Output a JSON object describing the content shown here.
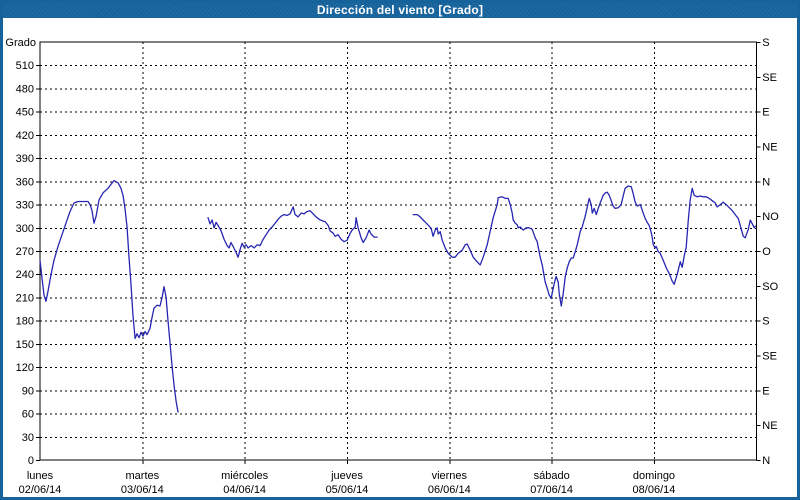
{
  "window": {
    "title": "Dirección del viento [Grado]"
  },
  "colors": {
    "frame": "#16639c",
    "title_bar": "#16639c",
    "title_text": "#ffffff",
    "plot_background": "#ffffff",
    "grid": "#000000",
    "axis": "#000000",
    "line": "#2626b2"
  },
  "chart_data": {
    "type": "line",
    "title": "Dirección del viento [Grado]",
    "grid": {
      "style": "dashed",
      "horizontal_step_degrees": 30,
      "vertical": "day boundaries"
    },
    "legend": "none",
    "y_axis_left": {
      "label": "Grado",
      "range": [
        0,
        540
      ],
      "tick_step": 30,
      "tick_labels": [
        "0",
        "30",
        "60",
        "90",
        "120",
        "150",
        "180",
        "210",
        "240",
        "270",
        "300",
        "330",
        "360",
        "390",
        "420",
        "450",
        "480",
        "510"
      ]
    },
    "y_axis_right": {
      "tick_step_degrees": 45,
      "labels_bottom_to_top": [
        "N",
        "NE",
        "E",
        "SE",
        "S",
        "SO",
        "O",
        "NO",
        "N",
        "NE",
        "E",
        "SE",
        "S"
      ]
    },
    "x_axis": {
      "unit": "days",
      "range_days": [
        0,
        7
      ],
      "days": [
        {
          "name": "lunes",
          "date": "02/06/14"
        },
        {
          "name": "martes",
          "date": "03/06/14"
        },
        {
          "name": "miércoles",
          "date": "04/06/14"
        },
        {
          "name": "jueves",
          "date": "05/06/14"
        },
        {
          "name": "viernes",
          "date": "06/06/14"
        },
        {
          "name": "sábado",
          "date": "07/06/14"
        },
        {
          "name": "domingo",
          "date": "08/06/14"
        }
      ]
    },
    "series": [
      {
        "name": "Dirección del viento",
        "color": "#2626b2",
        "unit": "Grado",
        "segments": [
          [
            [
              0.0,
              258
            ],
            [
              0.02,
              235
            ],
            [
              0.039,
              213
            ],
            [
              0.059,
              205
            ],
            [
              0.078,
              218
            ],
            [
              0.108,
              240
            ],
            [
              0.137,
              258
            ],
            [
              0.176,
              276
            ],
            [
              0.215,
              291
            ],
            [
              0.254,
              306
            ],
            [
              0.293,
              321
            ],
            [
              0.332,
              332
            ],
            [
              0.372,
              334
            ],
            [
              0.42,
              334
            ],
            [
              0.469,
              334
            ],
            [
              0.489,
              330
            ],
            [
              0.508,
              322
            ],
            [
              0.528,
              306
            ],
            [
              0.548,
              315
            ],
            [
              0.577,
              336
            ],
            [
              0.616,
              345
            ],
            [
              0.665,
              351
            ],
            [
              0.694,
              356
            ],
            [
              0.723,
              361
            ],
            [
              0.763,
              358
            ],
            [
              0.792,
              351
            ],
            [
              0.811,
              342
            ],
            [
              0.831,
              325
            ],
            [
              0.851,
              300
            ],
            [
              0.87,
              262
            ],
            [
              0.89,
              225
            ],
            [
              0.909,
              186
            ],
            [
              0.929,
              157
            ],
            [
              0.948,
              163
            ],
            [
              0.968,
              158
            ],
            [
              0.987,
              165
            ],
            [
              1.007,
              160
            ],
            [
              1.027,
              166
            ],
            [
              1.046,
              162
            ],
            [
              1.075,
              170
            ],
            [
              1.095,
              184
            ],
            [
              1.114,
              196
            ],
            [
              1.144,
              200
            ],
            [
              1.173,
              199
            ],
            [
              1.193,
              210
            ],
            [
              1.212,
              224
            ],
            [
              1.232,
              210
            ],
            [
              1.251,
              180
            ],
            [
              1.271,
              150
            ],
            [
              1.29,
              122
            ],
            [
              1.31,
              96
            ],
            [
              1.33,
              76
            ],
            [
              1.349,
              62
            ]
          ],
          [
            [
              1.642,
              313
            ],
            [
              1.662,
              305
            ],
            [
              1.682,
              310
            ],
            [
              1.701,
              300
            ],
            [
              1.721,
              307
            ],
            [
              1.74,
              303
            ],
            [
              1.77,
              296
            ],
            [
              1.799,
              285
            ],
            [
              1.828,
              277
            ],
            [
              1.848,
              274
            ],
            [
              1.867,
              281
            ],
            [
              1.887,
              276
            ],
            [
              1.916,
              268
            ],
            [
              1.936,
              262
            ],
            [
              1.955,
              272
            ],
            [
              1.975,
              280
            ],
            [
              1.994,
              275
            ],
            [
              2.014,
              278
            ],
            [
              2.034,
              274
            ],
            [
              2.063,
              277
            ],
            [
              2.092,
              274
            ],
            [
              2.122,
              278
            ],
            [
              2.151,
              277
            ],
            [
              2.18,
              285
            ],
            [
              2.21,
              291
            ],
            [
              2.239,
              297
            ],
            [
              2.268,
              301
            ],
            [
              2.298,
              306
            ],
            [
              2.327,
              311
            ],
            [
              2.356,
              315
            ],
            [
              2.386,
              317
            ],
            [
              2.415,
              316
            ],
            [
              2.444,
              318
            ],
            [
              2.474,
              327
            ],
            [
              2.493,
              317
            ],
            [
              2.522,
              314
            ],
            [
              2.552,
              319
            ],
            [
              2.581,
              318
            ],
            [
              2.61,
              321
            ],
            [
              2.64,
              322
            ],
            [
              2.669,
              318
            ],
            [
              2.698,
              314
            ],
            [
              2.728,
              311
            ],
            [
              2.757,
              309
            ],
            [
              2.786,
              308
            ],
            [
              2.816,
              303
            ],
            [
              2.835,
              296
            ],
            [
              2.865,
              293
            ],
            [
              2.884,
              289
            ],
            [
              2.913,
              291
            ],
            [
              2.943,
              285
            ],
            [
              2.972,
              282
            ],
            [
              3.001,
              284
            ],
            [
              3.031,
              293
            ],
            [
              3.05,
              297
            ],
            [
              3.08,
              301
            ],
            [
              3.089,
              313
            ],
            [
              3.109,
              300
            ],
            [
              3.138,
              287
            ],
            [
              3.158,
              281
            ],
            [
              3.187,
              287
            ],
            [
              3.216,
              297
            ],
            [
              3.236,
              292
            ],
            [
              3.265,
              288
            ],
            [
              3.294,
              288
            ]
          ],
          [
            [
              3.647,
              317
            ],
            [
              3.686,
              317
            ],
            [
              3.715,
              314
            ],
            [
              3.744,
              310
            ],
            [
              3.774,
              306
            ],
            [
              3.803,
              302
            ],
            [
              3.823,
              299
            ],
            [
              3.842,
              289
            ],
            [
              3.862,
              297
            ],
            [
              3.881,
              300
            ],
            [
              3.891,
              292
            ],
            [
              3.911,
              295
            ],
            [
              3.93,
              284
            ],
            [
              3.96,
              274
            ],
            [
              3.989,
              267
            ],
            [
              4.028,
              262
            ],
            [
              4.057,
              262
            ],
            [
              4.087,
              267
            ],
            [
              4.126,
              271
            ],
            [
              4.155,
              278
            ],
            [
              4.175,
              279
            ],
            [
              4.204,
              271
            ],
            [
              4.233,
              262
            ],
            [
              4.272,
              256
            ],
            [
              4.302,
              252
            ],
            [
              4.331,
              262
            ],
            [
              4.37,
              278
            ],
            [
              4.399,
              295
            ],
            [
              4.429,
              313
            ],
            [
              4.468,
              330
            ],
            [
              4.478,
              339
            ],
            [
              4.517,
              340
            ],
            [
              4.546,
              338
            ],
            [
              4.575,
              338
            ],
            [
              4.595,
              330
            ],
            [
              4.615,
              319
            ],
            [
              4.624,
              310
            ],
            [
              4.644,
              306
            ],
            [
              4.663,
              304
            ],
            [
              4.673,
              300
            ],
            [
              4.693,
              301
            ],
            [
              4.722,
              297
            ],
            [
              4.751,
              300
            ],
            [
              4.781,
              300
            ],
            [
              4.81,
              298
            ],
            [
              4.839,
              287
            ],
            [
              4.859,
              282
            ],
            [
              4.888,
              262
            ],
            [
              4.908,
              252
            ],
            [
              4.937,
              230
            ],
            [
              4.957,
              222
            ],
            [
              4.976,
              213
            ],
            [
              4.996,
              209
            ],
            [
              5.015,
              222
            ],
            [
              5.035,
              233
            ],
            [
              5.045,
              237
            ],
            [
              5.064,
              230
            ],
            [
              5.074,
              215
            ],
            [
              5.094,
              199
            ],
            [
              5.113,
              215
            ],
            [
              5.133,
              237
            ],
            [
              5.152,
              248
            ],
            [
              5.172,
              256
            ],
            [
              5.191,
              261
            ],
            [
              5.211,
              261
            ],
            [
              5.23,
              269
            ],
            [
              5.25,
              278
            ],
            [
              5.279,
              295
            ],
            [
              5.299,
              301
            ],
            [
              5.328,
              315
            ],
            [
              5.348,
              327
            ],
            [
              5.367,
              338
            ],
            [
              5.387,
              330
            ],
            [
              5.397,
              319
            ],
            [
              5.416,
              325
            ],
            [
              5.436,
              317
            ],
            [
              5.455,
              325
            ],
            [
              5.475,
              332
            ],
            [
              5.504,
              342
            ],
            [
              5.524,
              345
            ],
            [
              5.543,
              346
            ],
            [
              5.563,
              342
            ],
            [
              5.582,
              335
            ],
            [
              5.602,
              328
            ],
            [
              5.621,
              325
            ],
            [
              5.651,
              326
            ],
            [
              5.68,
              330
            ],
            [
              5.7,
              342
            ],
            [
              5.719,
              351
            ],
            [
              5.748,
              354
            ],
            [
              5.778,
              353
            ],
            [
              5.797,
              344
            ],
            [
              5.817,
              333
            ],
            [
              5.836,
              328
            ],
            [
              5.866,
              330
            ],
            [
              5.895,
              319
            ],
            [
              5.914,
              312
            ],
            [
              5.934,
              307
            ],
            [
              5.953,
              303
            ],
            [
              5.973,
              294
            ],
            [
              5.983,
              288
            ],
            [
              5.993,
              278
            ],
            [
              6.012,
              274
            ],
            [
              6.022,
              276
            ],
            [
              6.042,
              269
            ],
            [
              6.061,
              267
            ],
            [
              6.09,
              258
            ],
            [
              6.12,
              248
            ],
            [
              6.149,
              241
            ],
            [
              6.178,
              231
            ],
            [
              6.198,
              227
            ],
            [
              6.227,
              240
            ],
            [
              6.257,
              256
            ],
            [
              6.276,
              249
            ],
            [
              6.296,
              264
            ],
            [
              6.315,
              275
            ],
            [
              6.335,
              310
            ],
            [
              6.354,
              336
            ],
            [
              6.374,
              351
            ],
            [
              6.393,
              342
            ],
            [
              6.423,
              340
            ],
            [
              6.452,
              341
            ],
            [
              6.481,
              340
            ],
            [
              6.511,
              340
            ],
            [
              6.54,
              338
            ],
            [
              6.569,
              335
            ],
            [
              6.599,
              332
            ],
            [
              6.618,
              327
            ],
            [
              6.648,
              330
            ],
            [
              6.677,
              333
            ],
            [
              6.706,
              330
            ],
            [
              6.736,
              326
            ],
            [
              6.765,
              322
            ],
            [
              6.794,
              317
            ],
            [
              6.824,
              312
            ],
            [
              6.853,
              298
            ],
            [
              6.873,
              289
            ],
            [
              6.892,
              287
            ],
            [
              6.922,
              298
            ],
            [
              6.941,
              310
            ],
            [
              6.961,
              305
            ],
            [
              6.98,
              300
            ],
            [
              6.99,
              302
            ]
          ]
        ]
      }
    ]
  }
}
